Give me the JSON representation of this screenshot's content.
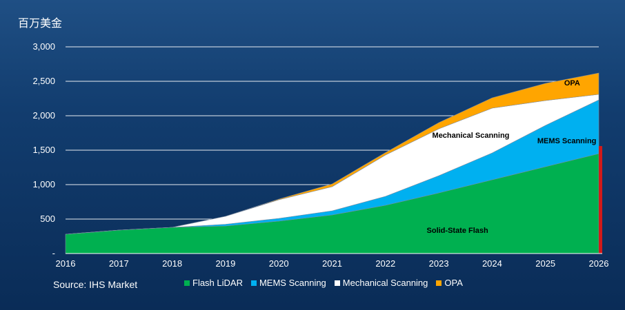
{
  "unit_label": "百万美金",
  "source": "Source: IHS Market",
  "chart_data": {
    "type": "area",
    "stacked": true,
    "x": [
      2016,
      2017,
      2018,
      2019,
      2020,
      2021,
      2022,
      2023,
      2024,
      2025,
      2026
    ],
    "ylim": [
      0,
      3000
    ],
    "yticks": [
      0,
      500,
      1000,
      1500,
      2000,
      2500,
      3000
    ],
    "ytick_labels": [
      "-",
      "500",
      "1,000",
      "1,500",
      "2,000",
      "2,500",
      "3,000"
    ],
    "grid": true,
    "legend_position": "bottom",
    "series": [
      {
        "name": "Flash LiDAR",
        "color": "#00b050",
        "values": [
          280,
          340,
          380,
          400,
          470,
          560,
          700,
          880,
          1070,
          1260,
          1450
        ]
      },
      {
        "name": "MEMS Scanning",
        "color": "#00b0f0",
        "values": [
          0,
          0,
          0,
          25,
          40,
          60,
          130,
          250,
          390,
          600,
          780
        ]
      },
      {
        "name": "Mechanical Scanning",
        "color": "#ffffff",
        "values": [
          0,
          0,
          0,
          115,
          270,
          350,
          600,
          680,
          650,
          360,
          80
        ]
      },
      {
        "name": "OPA",
        "color": "#ffa500",
        "values": [
          0,
          0,
          0,
          0,
          10,
          40,
          35,
          90,
          150,
          250,
          310
        ]
      }
    ],
    "annotations": [
      {
        "text": "Solid-State Flash",
        "x": 2023.35,
        "y": 300
      },
      {
        "text": "Mechanical Scanning",
        "x": 2023.6,
        "y": 1680
      },
      {
        "text": "MEMS Scanning",
        "x": 2025.4,
        "y": 1600
      },
      {
        "text": "OPA",
        "x": 2025.5,
        "y": 2440
      }
    ]
  }
}
